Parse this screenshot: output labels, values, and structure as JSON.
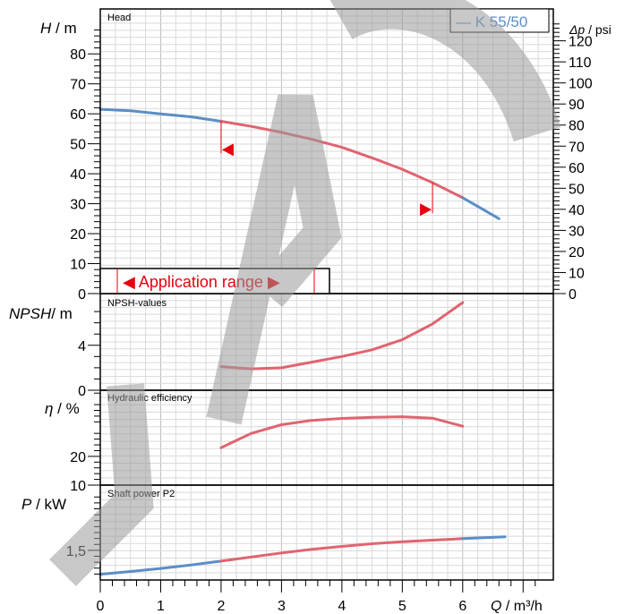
{
  "colors": {
    "blue": "#5b8ec4",
    "red": "#e06470",
    "range_red": "#e8000d",
    "grid_minor": "#d9d9d9",
    "grid_major": "#bdbdbd",
    "watermark": "#9a9a9a"
  },
  "legend": {
    "label": "— K 55/50"
  },
  "x_axis": {
    "label_italic": "Q",
    "label_unit": " / m³/h",
    "ticks": [
      "0",
      "1",
      "2",
      "3",
      "4",
      "5",
      "6"
    ]
  },
  "panels": {
    "head": {
      "title": "Head",
      "ylabel_italic": "H",
      "ylabel_unit": " / m",
      "left_ticks": [
        "0",
        "10",
        "20",
        "30",
        "40",
        "50",
        "60",
        "70",
        "80"
      ],
      "right_label_italic": "Δp",
      "right_label_unit": " / psi",
      "right_ticks": [
        "0",
        "10",
        "20",
        "30",
        "40",
        "50",
        "60",
        "70",
        "80",
        "90",
        "100",
        "110",
        "120"
      ],
      "application_range_label": "◀ Application range ▶"
    },
    "npsh": {
      "title": "NPSH-values",
      "ylabel_italic": "NPSH",
      "ylabel_unit": "/ m",
      "ticks": [
        "0",
        "4"
      ]
    },
    "eff": {
      "title": "Hydraulic efficiency",
      "ylabel_italic": "η",
      "ylabel_unit": " / %",
      "ticks": [
        "10",
        "20"
      ]
    },
    "power": {
      "title": "Shaft power P2",
      "ylabel_italic": "P",
      "ylabel_unit": "  / kW",
      "ticks": [
        "1,5"
      ]
    }
  },
  "chart_data": [
    {
      "type": "line",
      "title": "Head",
      "xlabel": "Q / m³/h",
      "ylabel": "H / m",
      "xlim": [
        0,
        7.5
      ],
      "ylim": [
        0,
        95
      ],
      "grid": true,
      "legend": "top-right",
      "series": [
        {
          "name": "K 55/50",
          "x": [
            0,
            0.5,
            1,
            1.5,
            2
          ],
          "y": [
            61.5,
            61,
            60,
            59,
            57.5
          ]
        },
        {
          "name": "",
          "x": [
            2,
            2.5,
            3,
            3.5,
            4,
            4.5,
            5,
            5.5,
            6
          ],
          "y": [
            57.5,
            55.8,
            53.8,
            51.5,
            48.8,
            45.3,
            41.5,
            37,
            32
          ]
        },
        {
          "name": "",
          "x": [
            6,
            6.3,
            6.6
          ],
          "y": [
            32,
            28.5,
            25
          ]
        }
      ],
      "application_range": {
        "x": [
          2.0,
          5.5
        ],
        "marker_y": [
          48,
          28
        ]
      }
    },
    {
      "type": "line",
      "title": "NPSH-values",
      "xlabel": "Q / m³/h",
      "ylabel": "NPSH / m",
      "xlim": [
        0,
        7.5
      ],
      "ylim": [
        0,
        8.6
      ],
      "grid": true,
      "series": [
        {
          "name": "",
          "x": [
            2,
            2.5,
            3,
            3.5,
            4,
            4.5,
            5,
            5.5,
            6
          ],
          "y": [
            2.1,
            1.9,
            2.0,
            2.5,
            3.0,
            3.6,
            4.5,
            5.9,
            7.8
          ]
        }
      ]
    },
    {
      "type": "line",
      "title": "Hydraulic efficiency",
      "xlabel": "Q / m³/h",
      "ylabel": "η / %",
      "xlim": [
        0,
        7.5
      ],
      "ylim": [
        10,
        43
      ],
      "grid": true,
      "series": [
        {
          "name": "",
          "x": [
            2,
            2.5,
            3,
            3.5,
            4,
            4.5,
            5,
            5.5,
            6
          ],
          "y": [
            23,
            28,
            31,
            32.5,
            33.2,
            33.6,
            33.8,
            33.3,
            30.5
          ]
        }
      ]
    },
    {
      "type": "line",
      "title": "Shaft power P2",
      "xlabel": "Q / m³/h",
      "ylabel": "P / kW",
      "xlim": [
        0,
        7.5
      ],
      "ylim": [
        1.25,
        2.05
      ],
      "grid": true,
      "series": [
        {
          "name": "",
          "x": [
            0,
            0.5,
            1,
            1.5,
            2
          ],
          "y": [
            1.298,
            1.322,
            1.347,
            1.376,
            1.409
          ]
        },
        {
          "name": "",
          "x": [
            2,
            2.5,
            3,
            3.5,
            4,
            4.5,
            5,
            5.5,
            6
          ],
          "y": [
            1.409,
            1.444,
            1.478,
            1.508,
            1.533,
            1.556,
            1.572,
            1.586,
            1.599
          ]
        },
        {
          "name": "",
          "x": [
            6,
            6.35,
            6.7
          ],
          "y": [
            1.599,
            1.607,
            1.614
          ]
        }
      ]
    }
  ]
}
